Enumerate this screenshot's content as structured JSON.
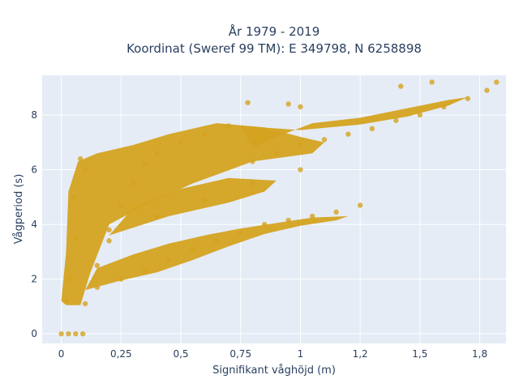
{
  "chart_data": {
    "type": "scatter",
    "title_line1": "År 1979 - 2019",
    "title_line2": "Koordinat (Sweref 99 TM): E 349798, N 6258898",
    "xlabel": "Signifikant våghöjd (m)",
    "ylabel": "Vågperiod (s)",
    "xlim": [
      -0.08,
      1.86
    ],
    "ylim": [
      -0.35,
      9.45
    ],
    "x_ticks": [
      0,
      0.25,
      0.5,
      0.75,
      1,
      1.25,
      1.5,
      1.75
    ],
    "x_tick_labels": [
      "0",
      "0,25",
      "0,5",
      "0,75",
      "1",
      "1,2",
      "1,5",
      "1,8"
    ],
    "y_ticks": [
      0,
      2,
      4,
      6,
      8
    ],
    "y_tick_labels": [
      "0",
      "2",
      "4",
      "6",
      "8"
    ],
    "grid": true,
    "legend": "none",
    "marker_color": "#d4a320",
    "plot_bg": "#e5ecf6",
    "series": [
      {
        "description_points": [
          [
            0.0,
            0.0
          ],
          [
            0.03,
            0.0
          ],
          [
            0.06,
            0.0
          ],
          [
            0.09,
            0.0
          ],
          [
            0.02,
            1.2
          ],
          [
            0.04,
            2.0
          ],
          [
            0.06,
            3.5
          ],
          [
            0.05,
            5.0
          ],
          [
            0.1,
            6.0
          ],
          [
            0.08,
            6.4
          ],
          [
            0.1,
            1.1
          ],
          [
            0.15,
            2.5
          ],
          [
            0.2,
            3.8
          ],
          [
            0.25,
            4.7
          ],
          [
            0.3,
            5.5
          ],
          [
            0.35,
            6.2
          ],
          [
            0.4,
            6.6
          ],
          [
            0.5,
            7.0
          ],
          [
            0.6,
            7.3
          ],
          [
            0.7,
            7.6
          ],
          [
            0.15,
            1.7
          ],
          [
            0.25,
            2.0
          ],
          [
            0.35,
            2.3
          ],
          [
            0.45,
            2.7
          ],
          [
            0.55,
            3.1
          ],
          [
            0.65,
            3.4
          ],
          [
            0.75,
            3.7
          ],
          [
            0.85,
            4.0
          ],
          [
            0.95,
            4.15
          ],
          [
            1.05,
            4.3
          ],
          [
            1.15,
            4.45
          ],
          [
            0.2,
            3.4
          ],
          [
            0.4,
            4.3
          ],
          [
            0.6,
            4.9
          ],
          [
            0.8,
            5.5
          ],
          [
            1.0,
            6.0
          ],
          [
            0.8,
            6.3
          ],
          [
            0.9,
            6.6
          ],
          [
            1.0,
            6.9
          ],
          [
            1.1,
            7.1
          ],
          [
            1.2,
            7.3
          ],
          [
            1.3,
            7.5
          ],
          [
            1.4,
            7.8
          ],
          [
            1.5,
            8.0
          ],
          [
            1.6,
            8.3
          ],
          [
            1.7,
            8.6
          ],
          [
            1.78,
            8.9
          ],
          [
            1.82,
            9.2
          ],
          [
            1.55,
            9.2
          ],
          [
            1.42,
            9.05
          ],
          [
            1.25,
            4.7
          ],
          [
            0.95,
            8.4
          ],
          [
            1.0,
            8.3
          ],
          [
            0.78,
            8.45
          ]
        ]
      }
    ]
  }
}
